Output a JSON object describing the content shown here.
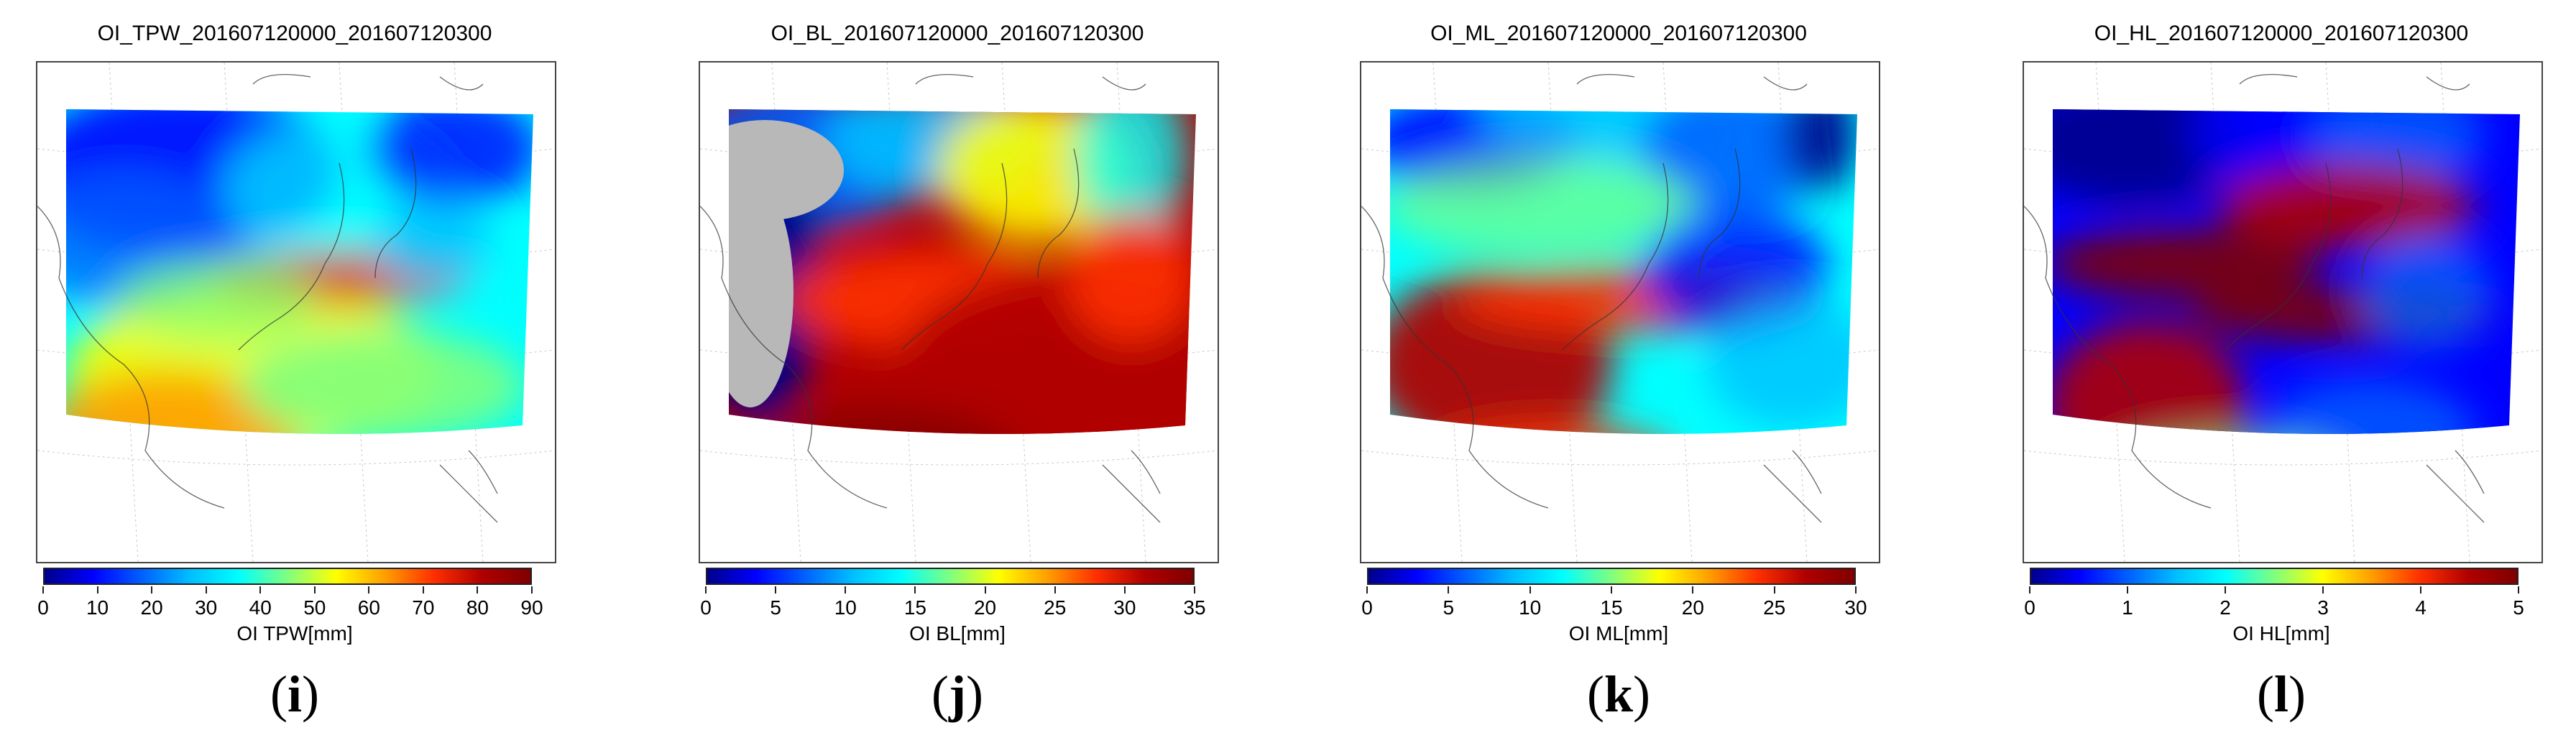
{
  "colormap": [
    "#00008b",
    "#0000ff",
    "#0060ff",
    "#00bfff",
    "#00ffff",
    "#7fff7f",
    "#ffff00",
    "#ff9f00",
    "#ff3000",
    "#b00000",
    "#7f0000"
  ],
  "panels": [
    {
      "title": "OI_TPW_201607120000_201607120300",
      "label": "OI TPW[mm]",
      "ticks": [
        "0",
        "10",
        "20",
        "30",
        "40",
        "50",
        "60",
        "70",
        "80",
        "90"
      ],
      "letter_open": "(",
      "letter": "i",
      "letter_close": ")"
    },
    {
      "title": "OI_BL_201607120000_201607120300",
      "label": "OI BL[mm]",
      "ticks": [
        "0",
        "5",
        "10",
        "15",
        "20",
        "25",
        "30",
        "35"
      ],
      "letter_open": "(",
      "letter": "j",
      "letter_close": ")"
    },
    {
      "title": "OI_ML_201607120000_201607120300",
      "label": "OI ML[mm]",
      "ticks": [
        "0",
        "5",
        "10",
        "15",
        "20",
        "25",
        "30"
      ],
      "letter_open": "(",
      "letter": "k",
      "letter_close": ")"
    },
    {
      "title": "OI_HL_201607120000_201607120300",
      "label": "OI HL[mm]",
      "ticks": [
        "0",
        "1",
        "2",
        "3",
        "4",
        "5"
      ],
      "letter_open": "(",
      "letter": "l",
      "letter_close": ")"
    }
  ]
}
